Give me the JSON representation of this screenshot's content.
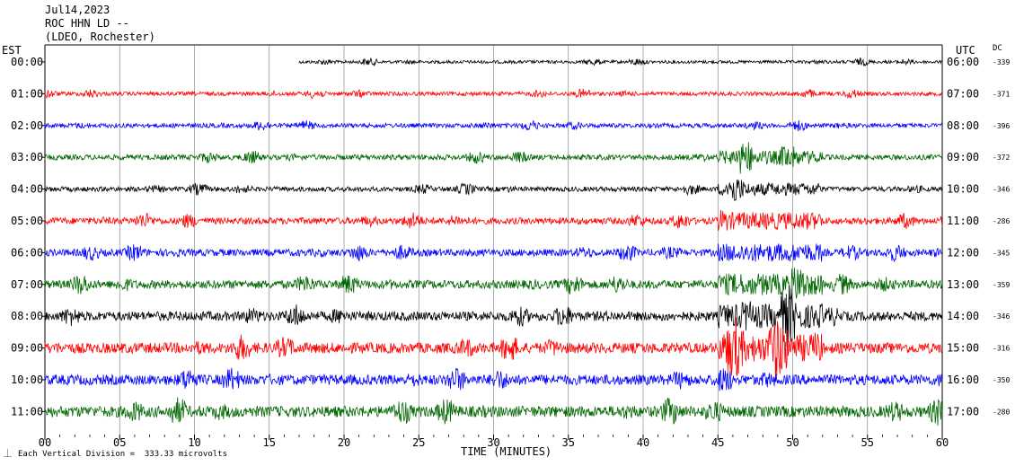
{
  "header": {
    "date": "Jul14,2023",
    "station": "ROC HHN LD --",
    "network": "(LDEO, Rochester)"
  },
  "chart_data": {
    "type": "line",
    "title": "",
    "xlabel": "TIME (MINUTES)",
    "left_axis_title": "EST",
    "right_axis_title": "UTC",
    "dc_title": "DC",
    "xlim": [
      0,
      60
    ],
    "x_ticks": [
      "00",
      "05",
      "10",
      "15",
      "20",
      "25",
      "30",
      "35",
      "40",
      "45",
      "50",
      "55",
      "60"
    ],
    "grid": "vertical lines every 5 minutes",
    "footer": "Each Vertical Division =  333.33 microvolts",
    "rows": [
      {
        "est": "00:00",
        "utc": "06:00",
        "dc": "-339",
        "color": "#000000",
        "start_min": 17,
        "amp": 0.35
      },
      {
        "est": "01:00",
        "utc": "07:00",
        "dc": "-371",
        "color": "#ff0000",
        "start_min": 0,
        "amp": 0.45
      },
      {
        "est": "02:00",
        "utc": "08:00",
        "dc": "-396",
        "color": "#0000ff",
        "start_min": 0,
        "amp": 0.5
      },
      {
        "est": "03:00",
        "utc": "09:00",
        "dc": "-372",
        "color": "#006600",
        "start_min": 0,
        "amp": 0.6
      },
      {
        "est": "04:00",
        "utc": "10:00",
        "dc": "-346",
        "color": "#000000",
        "start_min": 0,
        "amp": 0.55
      },
      {
        "est": "05:00",
        "utc": "11:00",
        "dc": "-286",
        "color": "#ff0000",
        "start_min": 0,
        "amp": 0.75
      },
      {
        "est": "06:00",
        "utc": "12:00",
        "dc": "-345",
        "color": "#0000ff",
        "start_min": 0,
        "amp": 0.8
      },
      {
        "est": "07:00",
        "utc": "13:00",
        "dc": "-359",
        "color": "#006600",
        "start_min": 0,
        "amp": 0.95
      },
      {
        "est": "08:00",
        "utc": "14:00",
        "dc": "-346",
        "color": "#000000",
        "start_min": 0,
        "amp": 1.05
      },
      {
        "est": "09:00",
        "utc": "15:00",
        "dc": "-316",
        "color": "#ff0000",
        "start_min": 0,
        "amp": 1.2
      },
      {
        "est": "10:00",
        "utc": "16:00",
        "dc": "-350",
        "color": "#0000ff",
        "start_min": 0,
        "amp": 1.15
      },
      {
        "est": "11:00",
        "utc": "17:00",
        "dc": "-280",
        "color": "#006600",
        "start_min": 0,
        "amp": 1.25
      }
    ],
    "event": {
      "minute_range": [
        45,
        52
      ],
      "note": "large vertical excursions visible across 03:00-10:00 rows"
    }
  }
}
